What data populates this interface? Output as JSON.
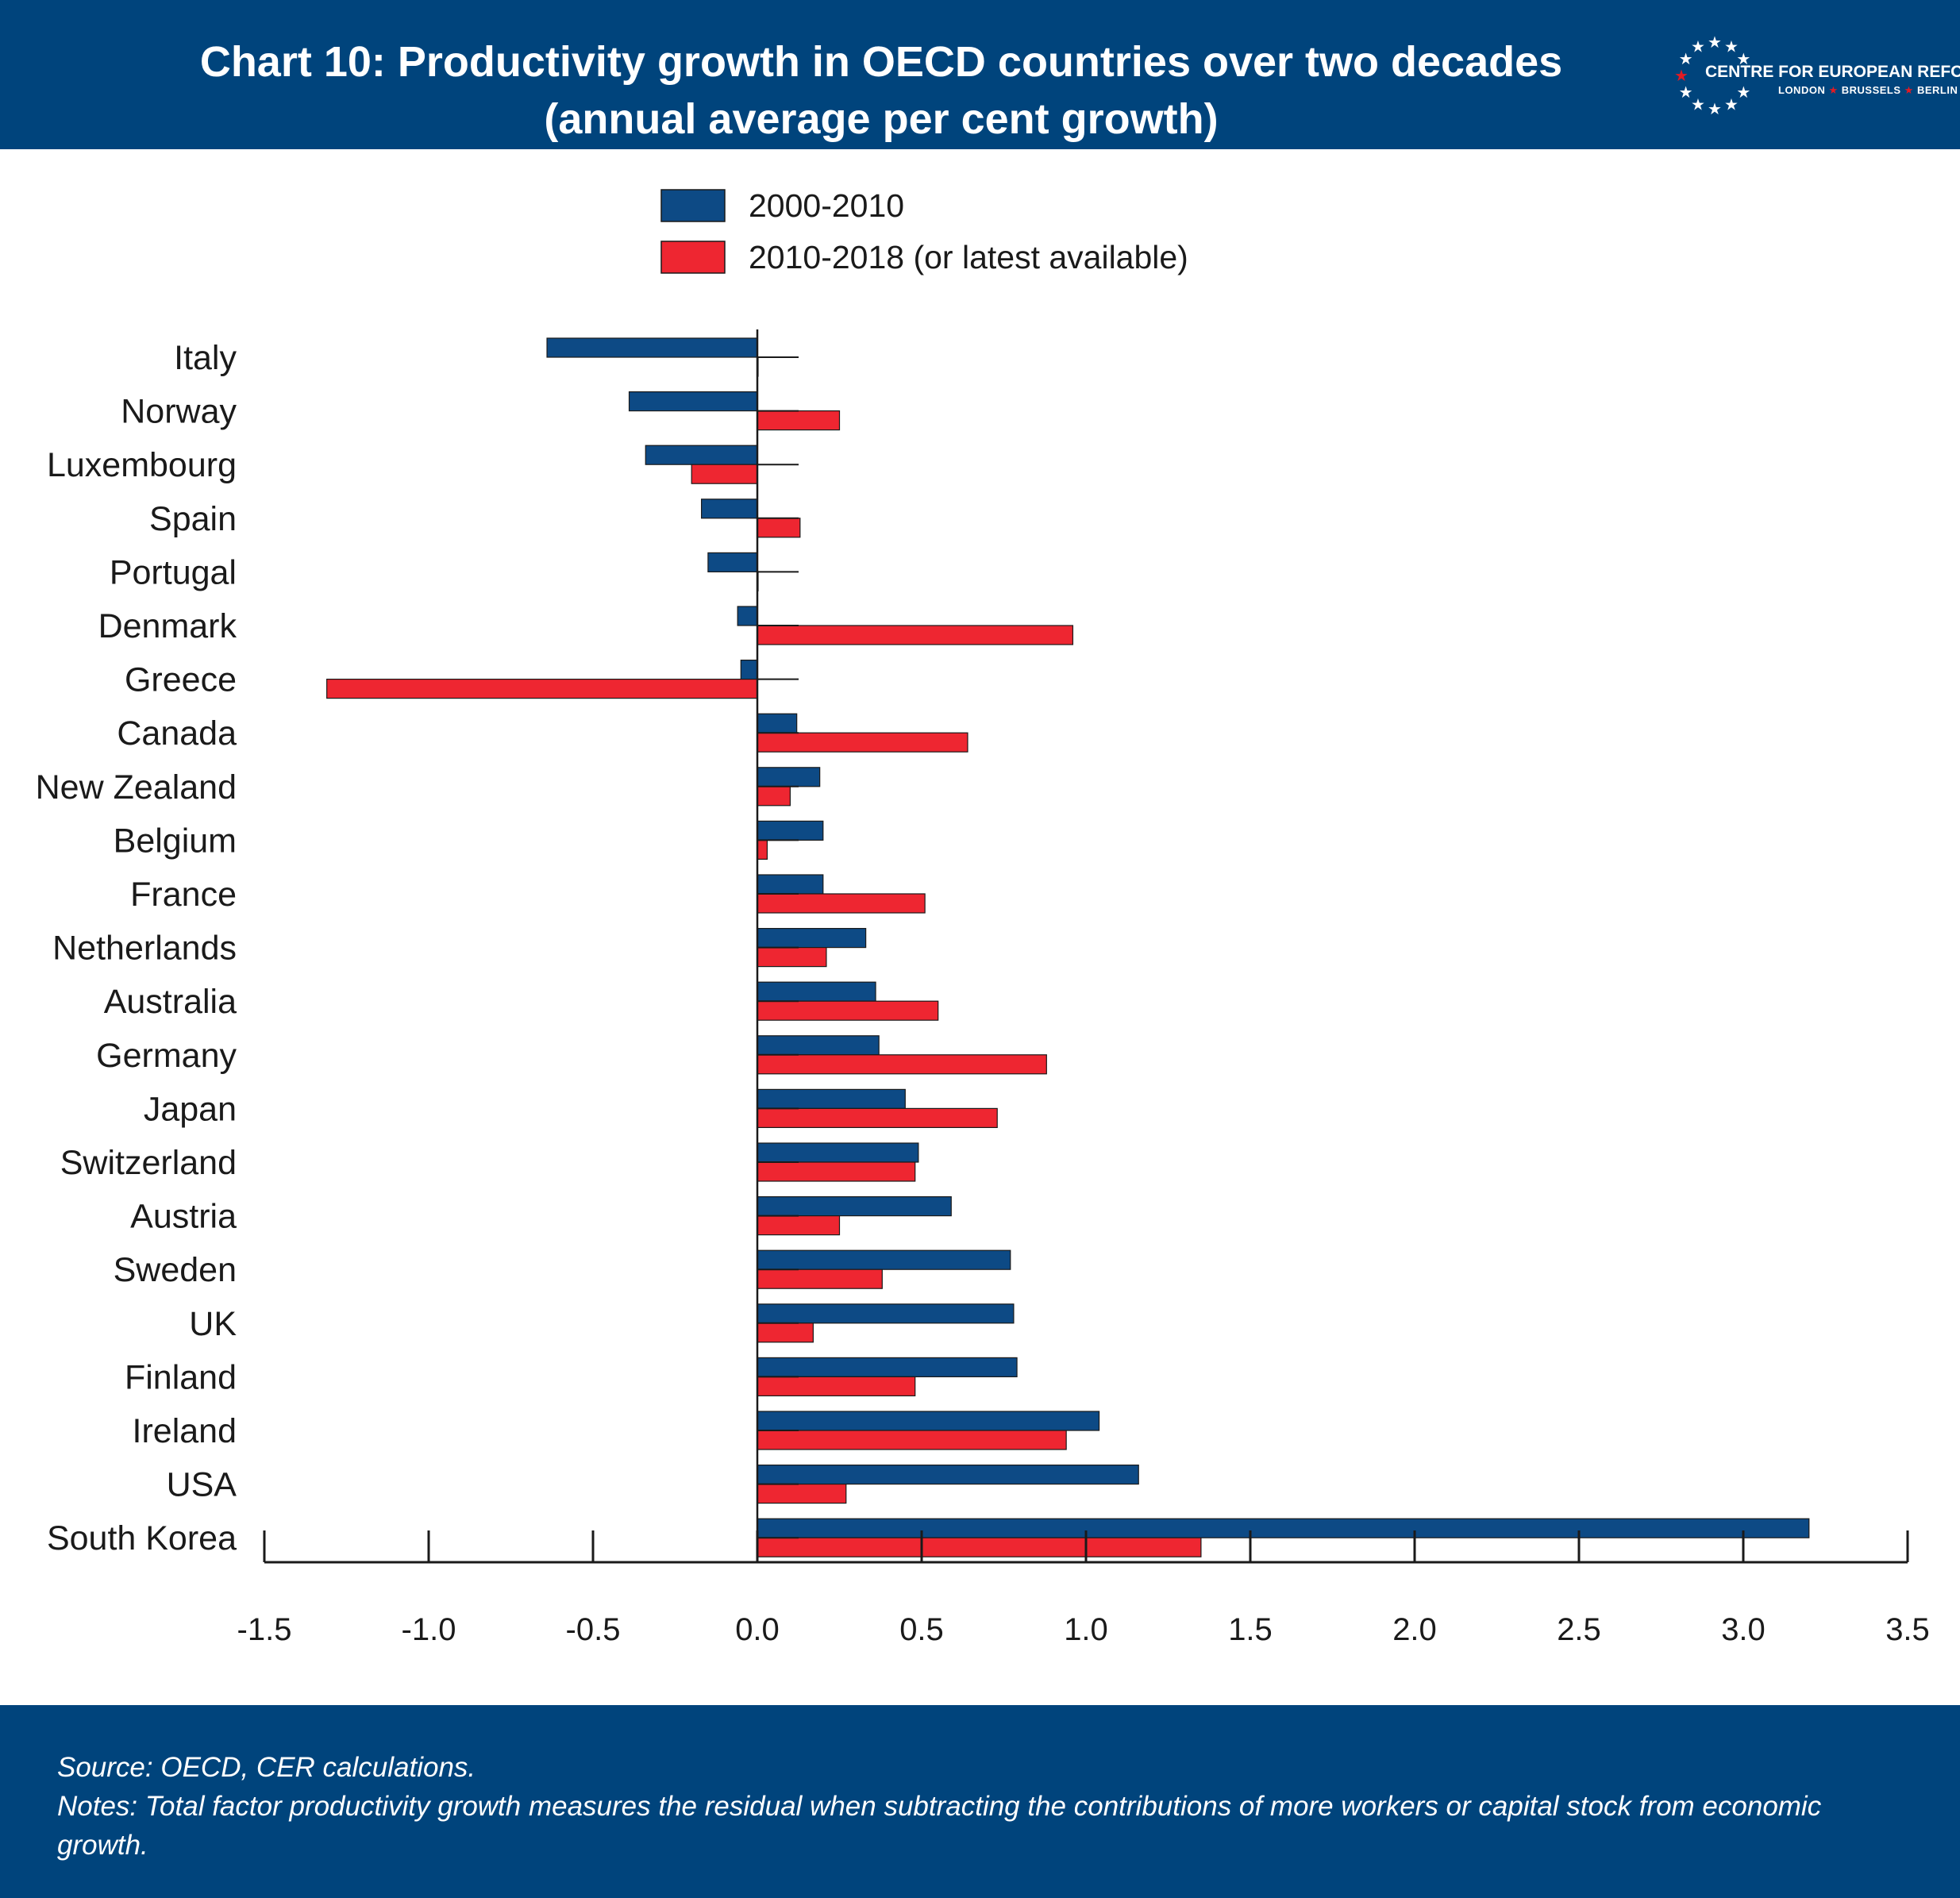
{
  "header": {
    "title_line1": "Chart 10: Productivity growth in OECD countries over two decades",
    "title_line2": "(annual average per cent growth)",
    "logo_name": "CENTRE FOR EUROPEAN REFORM",
    "logo_cities": [
      "LONDON",
      "BRUSSELS",
      "BERLIN"
    ]
  },
  "footer": {
    "source": "Source: OECD, CER calculations.",
    "notes": "Notes: Total factor productivity growth measures the residual when subtracting the contributions of more workers or capital stock from economic growth."
  },
  "colors": {
    "brand_blue": "#00447c",
    "series_2000_2010": "#0d4a85",
    "series_2010_2018": "#ee2631"
  },
  "chart_data": {
    "type": "bar",
    "orientation": "horizontal",
    "categories": [
      "Italy",
      "Norway",
      "Luxembourg",
      "Spain",
      "Portugal",
      "Denmark",
      "Greece",
      "Canada",
      "New Zealand",
      "Belgium",
      "France",
      "Netherlands",
      "Australia",
      "Germany",
      "Japan",
      "Switzerland",
      "Austria",
      "Sweden",
      "UK",
      "Finland",
      "Ireland",
      "USA",
      "South Korea"
    ],
    "series": [
      {
        "name": "2000-2010",
        "values": [
          -0.64,
          -0.39,
          -0.34,
          -0.17,
          -0.15,
          -0.06,
          -0.05,
          0.12,
          0.19,
          0.2,
          0.2,
          0.33,
          0.36,
          0.37,
          0.45,
          0.49,
          0.59,
          0.77,
          0.78,
          0.79,
          1.04,
          1.16,
          3.2
        ]
      },
      {
        "name": "2010-2018 (or latest available)",
        "values": [
          0.0,
          0.25,
          -0.2,
          0.13,
          0.0,
          0.96,
          -1.31,
          0.64,
          0.1,
          0.03,
          0.51,
          0.21,
          0.55,
          0.88,
          0.73,
          0.48,
          0.25,
          0.38,
          0.17,
          0.48,
          0.94,
          0.27,
          1.35
        ]
      }
    ],
    "xlim": [
      -1.5,
      3.5
    ],
    "xticks": [
      "-1.5",
      "-1.0",
      "-0.5",
      "0.0",
      "0.5",
      "1.0",
      "1.5",
      "2.0",
      "2.5",
      "3.0",
      "3.5"
    ],
    "grid": false,
    "legend_position": "top-center"
  }
}
